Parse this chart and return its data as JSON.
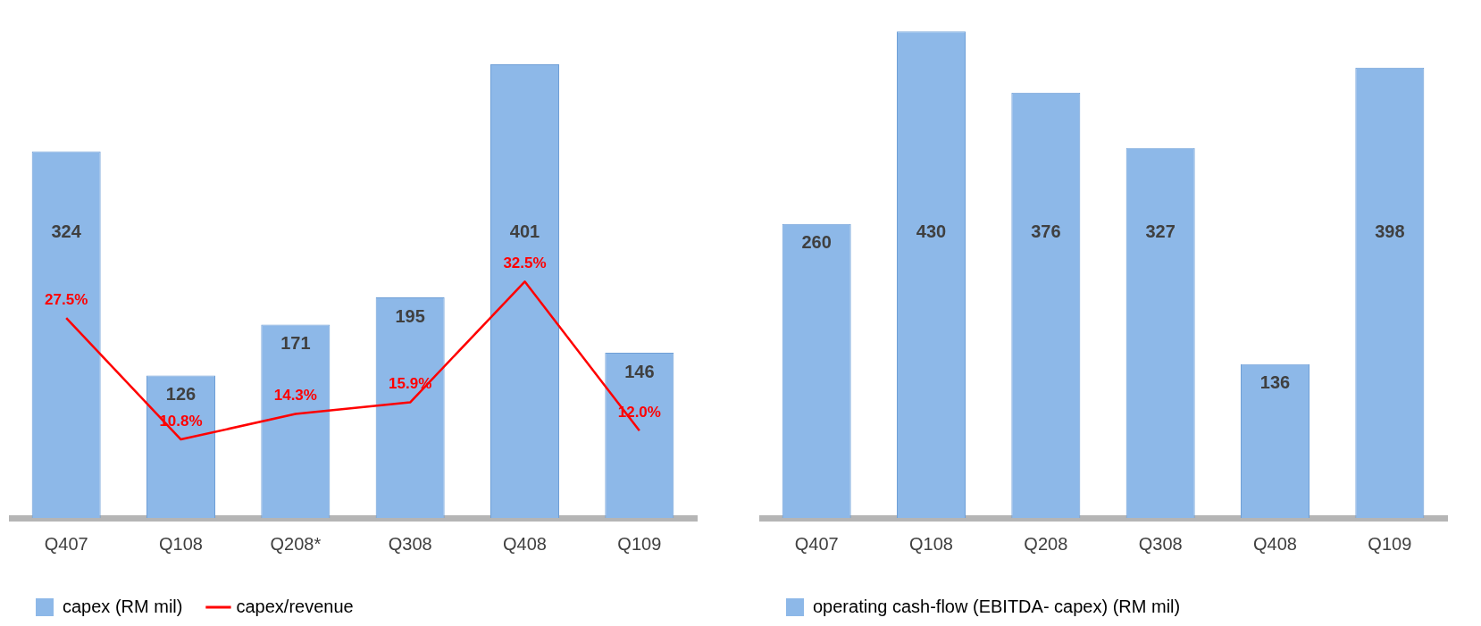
{
  "chart_data": [
    {
      "type": "bar",
      "categories": [
        "Q407",
        "Q108",
        "Q208*",
        "Q308",
        "Q408",
        "Q109"
      ],
      "series": [
        {
          "name": "capex (RM mil)",
          "color": "#8db8e8",
          "values": [
            324,
            126,
            171,
            195,
            401,
            146
          ]
        },
        {
          "name": "capex/revenue",
          "type": "line",
          "axis": "y2",
          "color": "#ff0000",
          "values": [
            27.5,
            10.8,
            14.3,
            15.9,
            32.5,
            12.0
          ],
          "value_labels": [
            "27.5%",
            "10.8%",
            "14.3%",
            "15.9%",
            "32.5%",
            "12.0%"
          ]
        }
      ],
      "data_labels": true,
      "grid": false,
      "legend": "bottom",
      "tick_labels": "x"
    },
    {
      "type": "bar",
      "categories": [
        "Q407",
        "Q108",
        "Q208",
        "Q308",
        "Q408",
        "Q109"
      ],
      "series": [
        {
          "name": "operating cash-flow (EBITDA- capex) (RM mil)",
          "color": "#8db8e8",
          "values": [
            260,
            430,
            376,
            327,
            136,
            398
          ]
        }
      ],
      "data_labels": true,
      "grid": false,
      "legend": "bottom",
      "tick_labels": "x"
    }
  ]
}
